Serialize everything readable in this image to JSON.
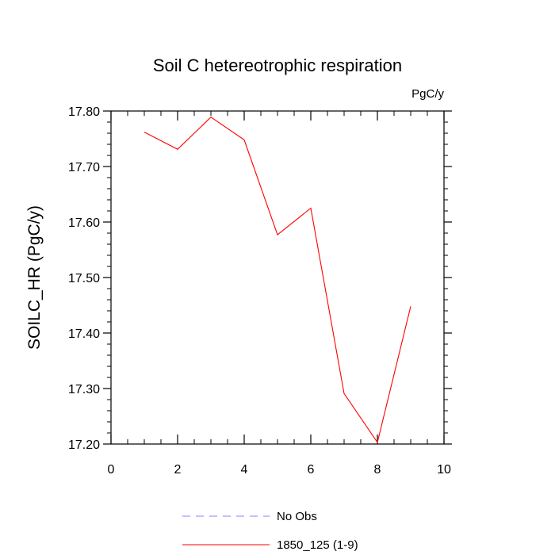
{
  "chart_data": {
    "type": "line",
    "title": "Soil C hetereotrophic respiration",
    "units_label": "PgC/y",
    "xlabel": "",
    "ylabel": "SOILC_HR  (PgC/y)",
    "xlim": [
      0,
      10
    ],
    "ylim": [
      17.2,
      17.8
    ],
    "x_ticks": [
      0,
      2,
      4,
      6,
      8,
      10
    ],
    "x_tick_labels": [
      "0",
      "2",
      "4",
      "6",
      "8",
      "10"
    ],
    "y_ticks": [
      17.2,
      17.3,
      17.4,
      17.5,
      17.6,
      17.7,
      17.8
    ],
    "y_tick_labels": [
      "17.20",
      "17.30",
      "17.40",
      "17.50",
      "17.60",
      "17.70",
      "17.80"
    ],
    "grid": false,
    "legend_position": "bottom",
    "series": [
      {
        "name": "No Obs",
        "color": "#8080ff",
        "style": "dashed",
        "x": [],
        "y": []
      },
      {
        "name": "1850_125 (1-9)",
        "color": "#ff0000",
        "style": "solid",
        "x": [
          1,
          2,
          3,
          4,
          5,
          6,
          7,
          8,
          9
        ],
        "y": [
          17.762,
          17.731,
          17.789,
          17.748,
          17.577,
          17.625,
          17.291,
          17.203,
          17.448
        ]
      }
    ]
  }
}
